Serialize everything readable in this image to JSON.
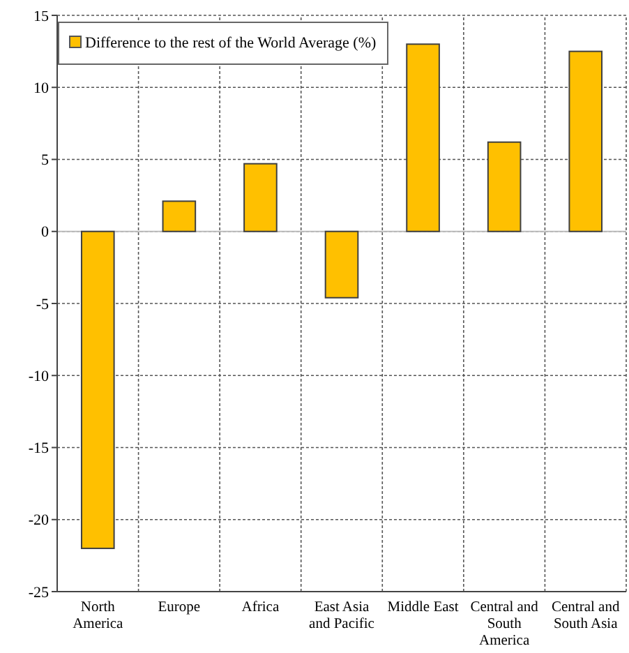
{
  "chart_data": {
    "type": "bar",
    "categories": [
      "North America",
      "Europe",
      "Africa",
      "East Asia and Pacific",
      "Middle East",
      "Central and South America",
      "Central and South Asia"
    ],
    "series": [
      {
        "name": "Difference to the rest of the World Average (%)",
        "color": "#ffc000",
        "values": [
          -22,
          2.1,
          4.7,
          -4.6,
          13,
          6.2,
          12.5
        ]
      }
    ],
    "ylim": [
      -25,
      15
    ],
    "yticks": [
      -25,
      -20,
      -15,
      -10,
      -5,
      0,
      5,
      10,
      15
    ],
    "grid": true,
    "legend": "top left"
  }
}
